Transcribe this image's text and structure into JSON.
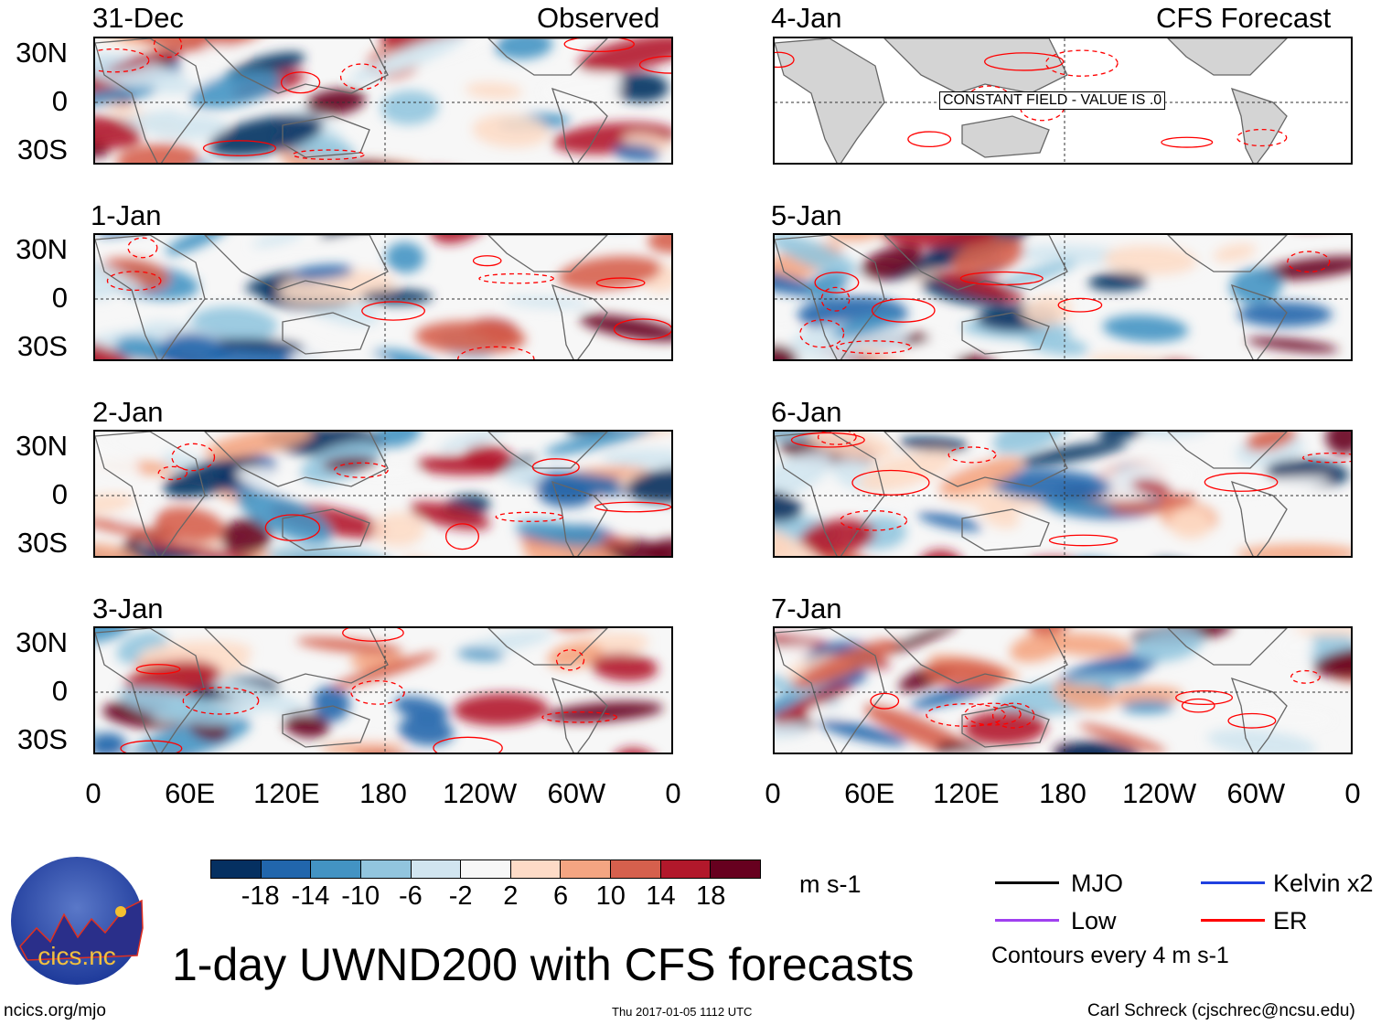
{
  "panels": {
    "observed_label": "Observed",
    "forecast_label": "CFS Forecast",
    "left": [
      {
        "date": "31-Dec"
      },
      {
        "date": "1-Jan"
      },
      {
        "date": "2-Jan"
      },
      {
        "date": "3-Jan"
      }
    ],
    "right": [
      {
        "date": "4-Jan",
        "constant_field_note": "CONSTANT FIELD - VALUE IS .0"
      },
      {
        "date": "5-Jan"
      },
      {
        "date": "6-Jan"
      },
      {
        "date": "7-Jan"
      }
    ]
  },
  "axes": {
    "lat_labels": [
      "30N",
      "0",
      "30S"
    ],
    "lon_labels": [
      "0",
      "60E",
      "120E",
      "180",
      "120W",
      "60W",
      "0"
    ]
  },
  "colorbar": {
    "labels": [
      "-18",
      "-14",
      "-10",
      "-6",
      "-2",
      "2",
      "6",
      "10",
      "14",
      "18"
    ],
    "colors": [
      "#053061",
      "#2166ac",
      "#4393c3",
      "#92c5de",
      "#d1e5f0",
      "#f7f7f7",
      "#fddbc7",
      "#f4a582",
      "#d6604d",
      "#b2182b",
      "#67001f"
    ],
    "units": "m s-1"
  },
  "legend": {
    "items": [
      {
        "label": "MJO",
        "color": "#000000"
      },
      {
        "label": "Kelvin x2",
        "color": "#2040e0"
      },
      {
        "label": "Low",
        "color": "#a040f0"
      },
      {
        "label": "ER",
        "color": "#ff0000"
      }
    ],
    "contour_note": "Contours every 4 m s-1"
  },
  "title": "1-day UWND200 with CFS forecasts",
  "logo_text": "cics.nc",
  "logo_ring_text": "Cooperative Institute for Climate and Satellites",
  "footer": {
    "url": "ncics.org/mjo",
    "timestamp": "Thu 2017-01-05 1112 UTC",
    "author": "Carl Schreck (cjschrec@ncsu.edu)"
  }
}
